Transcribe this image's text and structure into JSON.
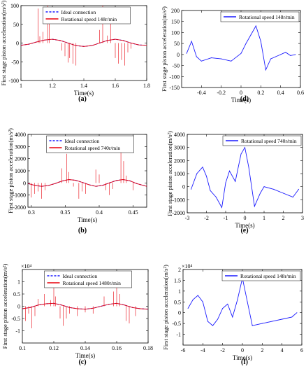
{
  "figure": {
    "panels": [
      {
        "id": "a",
        "label": "(a)",
        "ylabel": "First stage piston acceleration(m/s²)",
        "xlabel": "Time(s)",
        "multiplier": ""
      },
      {
        "id": "b",
        "label": "(b)",
        "ylabel": "First stage piston acceleration(m/s²)",
        "xlabel": "Time(s)",
        "multiplier": ""
      },
      {
        "id": "c",
        "label": "(c)",
        "ylabel": "First stage piston acceleration(m/s²)",
        "xlabel": "Time(s)",
        "multiplier": "×10⁴"
      },
      {
        "id": "d",
        "label": "(d)",
        "ylabel": "First stage piston acceleration(m/s²)",
        "xlabel": "Time(s)",
        "multiplier": ""
      },
      {
        "id": "e",
        "label": "(e)",
        "ylabel": "First stage piston acceleration(m/s²)",
        "xlabel": "Time(s)",
        "multiplier": ""
      },
      {
        "id": "f",
        "label": "(f)",
        "ylabel": "First stage piston acceleration(m/s²)",
        "xlabel": "Time(s)",
        "multiplier": "×10⁴"
      }
    ]
  },
  "chart_data": [
    {
      "id": "a",
      "type": "line",
      "xlabel": "Time(s)",
      "ylabel": "First stage piston acceleration(m/s²)",
      "xlim": [
        1,
        1.8
      ],
      "ylim": [
        -100,
        100
      ],
      "xticks": [
        1,
        1.2,
        1.4,
        1.6,
        1.8
      ],
      "yticks": [
        -100,
        -50,
        0,
        50,
        100
      ],
      "legend": "top-center",
      "series": [
        {
          "name": "Ideal connection",
          "color": "#1a1aff",
          "style": "dashed",
          "x": [
            1.0,
            1.05,
            1.1,
            1.15,
            1.2,
            1.25,
            1.3,
            1.35,
            1.4,
            1.45,
            1.5,
            1.55,
            1.6,
            1.65,
            1.7,
            1.75,
            1.8
          ],
          "y": [
            -6,
            -3,
            3,
            8,
            10,
            7,
            0,
            -7,
            -9,
            -7,
            0,
            7,
            10,
            7,
            0,
            -5,
            -6
          ]
        },
        {
          "name": "Rotational speed 148r/min",
          "color": "#e8000b",
          "style": "solid",
          "x": [
            1.0,
            1.05,
            1.1,
            1.15,
            1.2,
            1.25,
            1.3,
            1.35,
            1.4,
            1.45,
            1.5,
            1.55,
            1.6,
            1.65,
            1.7,
            1.75,
            1.8
          ],
          "y": [
            -6,
            -3,
            3,
            8,
            10,
            7,
            0,
            -7,
            -9,
            -7,
            0,
            7,
            10,
            7,
            0,
            -5,
            -6
          ],
          "spikes": [
            [
              1.11,
              92
            ],
            [
              1.12,
              18
            ],
            [
              1.14,
              30
            ],
            [
              1.17,
              100
            ],
            [
              1.18,
              55
            ],
            [
              1.26,
              -20
            ],
            [
              1.28,
              -35
            ],
            [
              1.3,
              -52
            ],
            [
              1.31,
              -40
            ],
            [
              1.33,
              -55
            ],
            [
              1.35,
              -60
            ],
            [
              1.5,
              35
            ],
            [
              1.52,
              100
            ],
            [
              1.55,
              20
            ],
            [
              1.57,
              95
            ],
            [
              1.6,
              -40
            ],
            [
              1.62,
              -55
            ],
            [
              1.64,
              -45
            ],
            [
              1.66,
              -60
            ],
            [
              1.68,
              -25
            ],
            [
              1.7,
              -15
            ]
          ]
        }
      ]
    },
    {
      "id": "b",
      "type": "line",
      "xlabel": "Time(s)",
      "ylabel": "First stage piston acceleration(m/s²)",
      "xlim": [
        0.295,
        0.47
      ],
      "ylim": [
        -2000,
        4000
      ],
      "xticks": [
        0.3,
        0.35,
        0.4,
        0.45
      ],
      "yticks": [
        -2000,
        -1000,
        0,
        1000,
        2000,
        3000,
        4000
      ],
      "legend": "top-center",
      "series": [
        {
          "name": "Ideal connection",
          "color": "#1a1aff",
          "style": "dashed",
          "x": [
            0.295,
            0.305,
            0.315,
            0.325,
            0.335,
            0.345,
            0.355,
            0.365,
            0.375,
            0.385,
            0.395,
            0.405,
            0.415,
            0.425,
            0.435,
            0.445,
            0.455,
            0.47
          ],
          "y": [
            -50,
            -200,
            -280,
            -220,
            -50,
            150,
            280,
            220,
            50,
            -150,
            -280,
            -200,
            0,
            200,
            280,
            180,
            -50,
            -280
          ]
        },
        {
          "name": "Rotational speed 740r/min",
          "color": "#e8000b",
          "style": "solid",
          "x": [
            0.295,
            0.305,
            0.315,
            0.325,
            0.335,
            0.345,
            0.355,
            0.365,
            0.375,
            0.385,
            0.395,
            0.405,
            0.415,
            0.425,
            0.435,
            0.445,
            0.455,
            0.47
          ],
          "y": [
            -50,
            -200,
            -280,
            -220,
            -50,
            150,
            280,
            220,
            50,
            -150,
            -280,
            -200,
            0,
            200,
            280,
            180,
            -50,
            -280
          ],
          "spikes": [
            [
              0.3,
              -1200
            ],
            [
              0.305,
              -900
            ],
            [
              0.31,
              -700
            ],
            [
              0.315,
              -1300
            ],
            [
              0.32,
              -600
            ],
            [
              0.345,
              1200
            ],
            [
              0.352,
              2400
            ],
            [
              0.355,
              900
            ],
            [
              0.362,
              -300
            ],
            [
              0.37,
              -1300
            ],
            [
              0.375,
              -700
            ],
            [
              0.38,
              -900
            ],
            [
              0.395,
              1100
            ],
            [
              0.4,
              700
            ],
            [
              0.41,
              -600
            ],
            [
              0.415,
              -1000
            ],
            [
              0.42,
              -500
            ],
            [
              0.432,
              2700
            ],
            [
              0.436,
              1800
            ],
            [
              0.44,
              600
            ],
            [
              0.45,
              -600
            ]
          ]
        }
      ]
    },
    {
      "id": "c",
      "type": "line",
      "xlabel": "Time(s)",
      "ylabel": "First stage piston acceleration(m/s²)",
      "xlim": [
        0.1,
        0.18
      ],
      "ylim": [
        -1.5,
        1.5
      ],
      "yscale_label": "×10⁴",
      "xticks": [
        0.1,
        0.12,
        0.14,
        0.16,
        0.18
      ],
      "yticks": [
        -1,
        -0.5,
        0,
        0.5,
        1
      ],
      "legend": "top-center",
      "series": [
        {
          "name": "Ideal connection",
          "color": "#1a1aff",
          "style": "dashed",
          "x": [
            0.1,
            0.105,
            0.11,
            0.115,
            0.12,
            0.125,
            0.13,
            0.135,
            0.14,
            0.145,
            0.15,
            0.155,
            0.16,
            0.165,
            0.17,
            0.175,
            0.18
          ],
          "y": [
            -0.1,
            -0.05,
            0.05,
            0.1,
            0.12,
            0.05,
            -0.05,
            -0.1,
            -0.12,
            -0.08,
            0.0,
            0.08,
            0.12,
            0.05,
            -0.05,
            -0.1,
            -0.12
          ]
        },
        {
          "name": "Rotational speed 1480r/min",
          "color": "#e8000b",
          "style": "solid",
          "x": [
            0.1,
            0.105,
            0.11,
            0.115,
            0.12,
            0.125,
            0.13,
            0.135,
            0.14,
            0.145,
            0.15,
            0.155,
            0.16,
            0.165,
            0.17,
            0.175,
            0.18
          ],
          "y": [
            -0.1,
            -0.05,
            0.05,
            0.1,
            0.12,
            0.05,
            -0.05,
            -0.1,
            -0.12,
            -0.08,
            0.0,
            0.08,
            0.12,
            0.05,
            -0.05,
            -0.1,
            -0.12
          ],
          "spikes": [
            [
              0.102,
              -0.6
            ],
            [
              0.104,
              -0.3
            ],
            [
              0.106,
              -0.9
            ],
            [
              0.108,
              -0.4
            ],
            [
              0.11,
              0.3
            ],
            [
              0.114,
              0.5
            ],
            [
              0.118,
              0.25
            ],
            [
              0.12,
              1.2
            ],
            [
              0.121,
              0.4
            ],
            [
              0.124,
              -0.5
            ],
            [
              0.126,
              -0.8
            ],
            [
              0.128,
              -0.5
            ],
            [
              0.13,
              -0.3
            ],
            [
              0.135,
              -0.4
            ],
            [
              0.14,
              -0.25
            ],
            [
              0.145,
              -0.3
            ],
            [
              0.152,
              0.4
            ],
            [
              0.158,
              0.6
            ],
            [
              0.16,
              1.0
            ],
            [
              0.162,
              0.5
            ],
            [
              0.166,
              -0.6
            ],
            [
              0.168,
              -0.7
            ],
            [
              0.172,
              -0.4
            ]
          ]
        }
      ]
    },
    {
      "id": "d",
      "type": "line",
      "xlabel": "Time(s)",
      "ylabel": "First stage piston acceleration(m/s²)",
      "xlim": [
        -0.6,
        0.6
      ],
      "ylim": [
        -150,
        200
      ],
      "xticks": [
        -0.4,
        -0.2,
        0,
        0.2,
        0.4,
        0.6
      ],
      "yticks": [
        -150,
        -100,
        -50,
        0,
        50,
        100,
        150,
        200
      ],
      "legend": "top-right",
      "series": [
        {
          "name": "Rotational speed 148r/min",
          "color": "#1a1aff",
          "style": "solid",
          "x": [
            -0.55,
            -0.5,
            -0.45,
            -0.4,
            -0.3,
            -0.2,
            -0.1,
            0.0,
            0.05,
            0.1,
            0.15,
            0.2,
            0.25,
            0.3,
            0.35,
            0.4,
            0.45,
            0.5,
            0.55
          ],
          "y": [
            5,
            60,
            -10,
            -30,
            -15,
            -20,
            -30,
            5,
            50,
            90,
            130,
            60,
            -70,
            -20,
            -10,
            0,
            10,
            -5,
            0
          ]
        }
      ]
    },
    {
      "id": "e",
      "type": "line",
      "xlabel": "Time(s)",
      "ylabel": "First stage piston acceleration(m/s²)",
      "xlim": [
        -3,
        3
      ],
      "ylim": [
        -2000,
        4000
      ],
      "xticks": [
        -3,
        -2,
        -1,
        0,
        1,
        2,
        3
      ],
      "yticks": [
        -2000,
        -1000,
        0,
        1000,
        2000,
        3000,
        4000
      ],
      "legend": "top-right",
      "series": [
        {
          "name": "Rotational speed 740r/min",
          "color": "#1a1aff",
          "style": "solid",
          "x": [
            -2.8,
            -2.5,
            -2.2,
            -2.0,
            -1.8,
            -1.5,
            -1.2,
            -1.0,
            -0.8,
            -0.5,
            -0.2,
            0.0,
            0.2,
            0.5,
            0.8,
            1.0,
            1.5,
            2.0,
            2.5,
            2.8
          ],
          "y": [
            -200,
            1000,
            1500,
            800,
            -300,
            -800,
            -1600,
            300,
            1200,
            400,
            2500,
            3000,
            1500,
            -1500,
            -500,
            0,
            -200,
            -500,
            -800,
            -200
          ]
        }
      ]
    },
    {
      "id": "f",
      "type": "line",
      "xlabel": "Time(s)",
      "ylabel": "First stage piston acceleration(m/s²)",
      "xlim": [
        -6,
        6
      ],
      "ylim": [
        -1.5,
        2
      ],
      "yscale_label": "×10⁴",
      "xticks": [
        -6,
        -4,
        -2,
        0,
        2,
        4,
        6
      ],
      "yticks": [
        -1,
        -0.5,
        0,
        0.5,
        1,
        1.5,
        2
      ],
      "legend": "top-right",
      "series": [
        {
          "name": "Rotational speed 148r/min",
          "color": "#1a1aff",
          "style": "solid",
          "x": [
            -5.5,
            -5.0,
            -4.5,
            -4.0,
            -3.5,
            -3.0,
            -2.5,
            -2.0,
            -1.5,
            -1.0,
            -0.5,
            0.0,
            0.5,
            1.0,
            2.0,
            3.0,
            4.0,
            5.0,
            5.5
          ],
          "y": [
            0.2,
            0.6,
            0.8,
            0.5,
            -0.4,
            -0.6,
            -0.3,
            0.2,
            0.4,
            -0.2,
            0.6,
            1.6,
            0.5,
            -0.6,
            -0.5,
            -0.4,
            -0.3,
            -0.2,
            0.0
          ]
        }
      ]
    }
  ]
}
